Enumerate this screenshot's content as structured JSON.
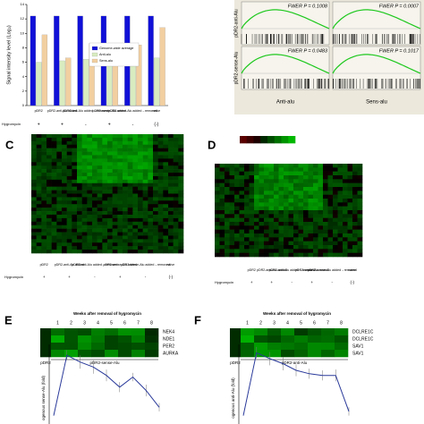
{
  "panel_a": {
    "type": "bar",
    "ylabel": "Signal intensity level (Log₂)",
    "categories": [
      "pDR2",
      "pDR2-anti-Alu added",
      "pDR2-anti-Alu added→removed",
      "pDR2-sense-Alu added",
      "pDR2-sense-Alu added→removed",
      "naive"
    ],
    "series": [
      {
        "name": "Genome-wide average",
        "color": "#1010d8",
        "values": [
          12.4,
          12.4,
          12.4,
          12.4,
          12.4,
          12.4
        ]
      },
      {
        "name": "Anti-alu",
        "color": "#d8ecc0",
        "values": [
          6.0,
          6.2,
          6.4,
          5.6,
          7.2,
          6.6
        ]
      },
      {
        "name": "Sens-alu",
        "color": "#f2cfa0",
        "values": [
          9.8,
          6.6,
          8.6,
          6.0,
          8.4,
          10.8
        ]
      }
    ],
    "ylim": [
      0,
      14
    ],
    "yticks": [
      0,
      2,
      4,
      6,
      8,
      10,
      12,
      14
    ],
    "hygromycin": {
      "label": "Hygromycin",
      "values": [
        "+",
        "+",
        "-",
        "+",
        "-",
        "(-)"
      ]
    }
  },
  "panel_b": {
    "rows": [
      "pDR2-anti-Alu",
      "pDR2-sense-Alu"
    ],
    "columns": [
      "Anti-alu",
      "Sens-alu"
    ],
    "stats": [
      "FWER P = 0.1008",
      "FWER P = 0.0007",
      "FWER P = 0.0483",
      "FWER P = 0.1017"
    ]
  },
  "panel_c": {
    "letter": "C",
    "columns": [
      "pDR2",
      "pDR2-anti-Alu added",
      "pDR2-anti-Alu added→removed",
      "pDR2-sense-Alu added",
      "pDR2-sense-Alu added→removed",
      "naive"
    ],
    "hygromycin": {
      "label": "Hygromycin",
      "values": [
        "+",
        "+",
        "-",
        "+",
        "-",
        "(-)"
      ]
    }
  },
  "panel_d": {
    "letter": "D",
    "columns": [
      "pDR2",
      "pDR2-anti-Alu added",
      "pDR2-anti-Alu added→removed",
      "pDR2-sense-Alu added",
      "pDR2-sense-Alu added→removed",
      "naive"
    ],
    "hygromycin": {
      "label": "Hygromycin",
      "values": [
        "+",
        "+",
        "-",
        "+",
        "-",
        "(-)"
      ]
    }
  },
  "panel_e": {
    "letter": "E",
    "header": "Weeks after removal of hygromycin",
    "weeks": [
      "1",
      "2",
      "3",
      "4",
      "5",
      "6",
      "7",
      "8"
    ],
    "genes": [
      "NEK4",
      "NDE1",
      "PER2",
      "AURKA"
    ],
    "groups": [
      "pDR2",
      "pDR2-sense-Alu"
    ],
    "ylabel": "ogenous sense-Alu (fold)",
    "x": [
      0,
      1,
      2,
      3,
      4,
      5,
      6,
      7,
      8
    ],
    "values": [
      1,
      8.2,
      7.4,
      6.8,
      5.8,
      4.4,
      5.6,
      4.0,
      2.0
    ],
    "errors": [
      0,
      0.6,
      0.8,
      0.8,
      0.7,
      0.6,
      0.5,
      0.7,
      0.5
    ],
    "xlim": [
      0,
      8
    ],
    "ylim": [
      0,
      9.5
    ],
    "color": "#2a3a9a"
  },
  "panel_f": {
    "letter": "F",
    "header": "Weeks after removal of hygromycin",
    "weeks": [
      "1",
      "2",
      "3",
      "4",
      "5",
      "6",
      "7",
      "8"
    ],
    "genes": [
      "DCLRE1C",
      "DCLRE1C",
      "SAV1",
      "SAV1"
    ],
    "groups": [
      "pDR2",
      "pDR2-anti-Alu"
    ],
    "ylabel": "ogenous anti-Alu (fold)",
    "x": [
      0,
      1,
      2,
      3,
      4,
      5,
      6,
      7,
      8
    ],
    "values": [
      1,
      8.5,
      7.8,
      7.2,
      6.4,
      6.0,
      5.8,
      5.8,
      1.5
    ],
    "errors": [
      0,
      0.7,
      0.8,
      0.8,
      0.7,
      0.6,
      0.6,
      0.7,
      0.5
    ],
    "xlim": [
      0,
      8
    ],
    "ylim": [
      0,
      9.5
    ],
    "color": "#2a3a9a"
  }
}
